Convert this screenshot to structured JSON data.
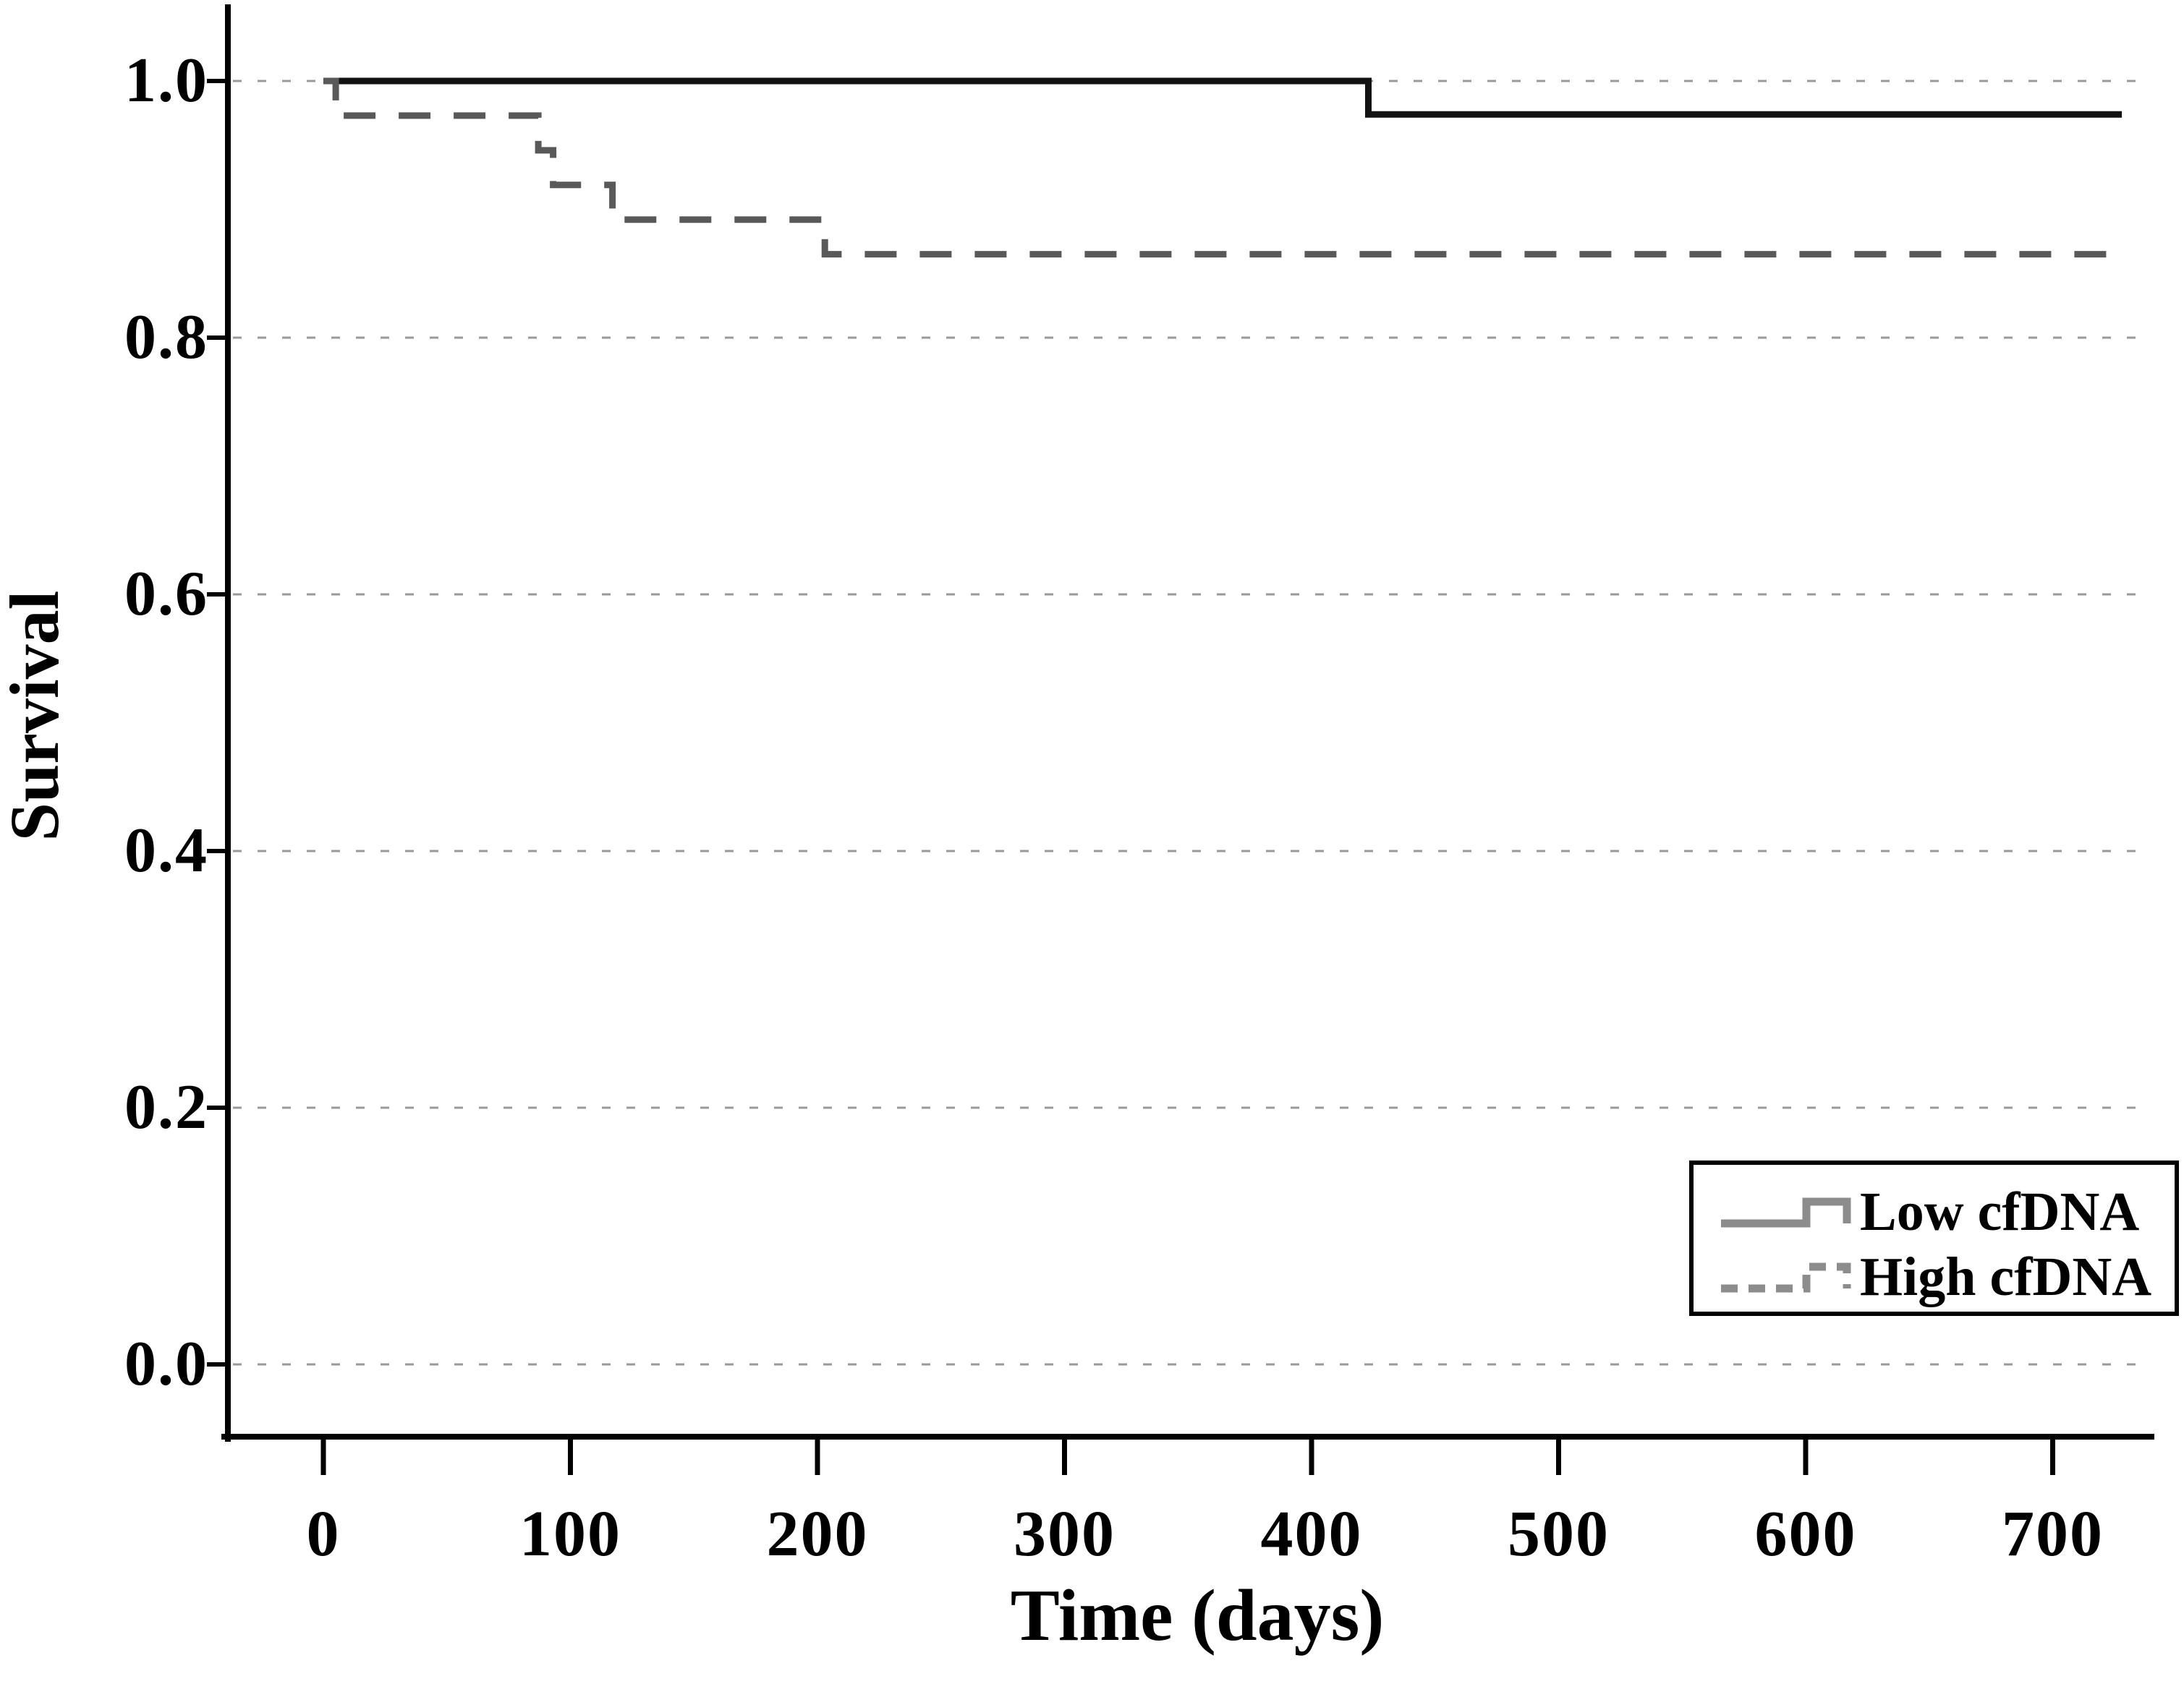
{
  "figure": {
    "background": "#ffffff",
    "text_color": "#000000"
  },
  "chart_data": {
    "type": "line",
    "subtype": "kaplan_meier_step",
    "title": "",
    "xlabel": "Time (days)",
    "ylabel": "Survival",
    "x_ticks": [
      {
        "label": "0",
        "value": 0
      },
      {
        "label": "100",
        "value": 100
      },
      {
        "label": "200",
        "value": 200
      },
      {
        "label": "300",
        "value": 300
      },
      {
        "label": "400",
        "value": 400
      },
      {
        "label": "500",
        "value": 500
      },
      {
        "label": "600",
        "value": 600
      },
      {
        "label": "700",
        "value": 700
      }
    ],
    "y_ticks": [
      {
        "label": "1.0",
        "value": 1.0
      },
      {
        "label": "0.8",
        "value": 0.8
      },
      {
        "label": "0.6",
        "value": 0.6
      },
      {
        "label": "0.4",
        "value": 0.4
      },
      {
        "label": "0.2",
        "value": 0.2
      },
      {
        "label": "0.0",
        "value": 0.0
      }
    ],
    "xlim": [
      -41,
      741
    ],
    "ylim": [
      -0.056,
      1.06
    ],
    "grid": {
      "axis": "y",
      "style": "dotted",
      "color": "#999999"
    },
    "legend_position": "lower-right",
    "series": [
      {
        "name": "Low cfDNA",
        "line_style": "solid",
        "color": "#121212",
        "points": [
          [
            0,
            1.0
          ],
          [
            423,
            1.0
          ],
          [
            423,
            0.974
          ],
          [
            728,
            0.974
          ]
        ]
      },
      {
        "name": "High cfDNA",
        "line_style": "dashed",
        "color": "#595959",
        "points": [
          [
            0,
            1.0
          ],
          [
            5,
            1.0
          ],
          [
            5,
            0.973
          ],
          [
            87,
            0.973
          ],
          [
            87,
            0.946
          ],
          [
            93,
            0.946
          ],
          [
            93,
            0.919
          ],
          [
            117,
            0.919
          ],
          [
            117,
            0.892
          ],
          [
            203,
            0.892
          ],
          [
            203,
            0.865
          ],
          [
            727,
            0.865
          ]
        ]
      }
    ]
  },
  "legend": {
    "border_color": "#000000",
    "glyph_color": "#8c8c8c"
  }
}
